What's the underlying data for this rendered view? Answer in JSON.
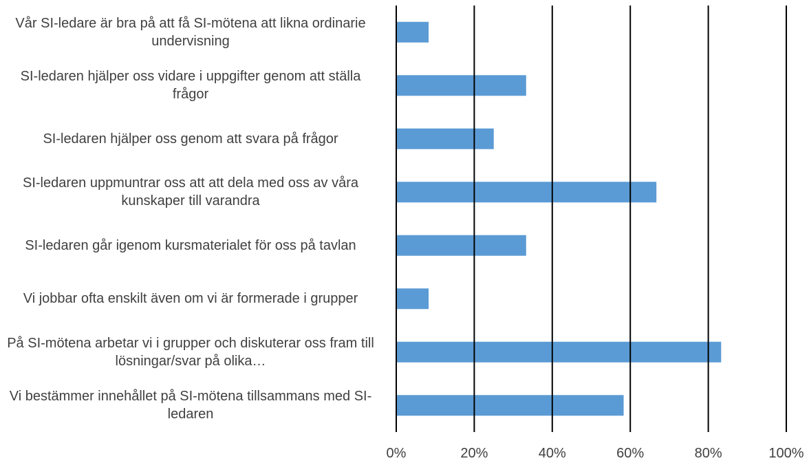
{
  "chart_data": {
    "type": "bar",
    "orientation": "horizontal",
    "categories": [
      "Vår SI-ledare är bra på att få SI-mötena att likna ordinarie undervisning",
      "SI-ledaren hjälper oss vidare i uppgifter genom att ställa frågor",
      "SI-ledaren hjälper oss genom att svara på frågor",
      "SI-ledaren uppmuntrar oss att att dela med oss av våra kunskaper till varandra",
      "SI-ledaren går igenom kursmaterialet för oss på tavlan",
      "Vi jobbar ofta enskilt även om vi är formerade i grupper",
      "På SI-mötena arbetar vi i grupper och diskuterar oss fram till lösningar/svar på olika…",
      "Vi bestämmer innehållet på SI-mötena tillsammans med SI-ledaren"
    ],
    "values": [
      8.3,
      33.3,
      25,
      66.7,
      33.3,
      8.3,
      83.3,
      58.3
    ],
    "color": "#5b9bd5",
    "xlim": [
      0,
      100
    ],
    "xticks": [
      {
        "value": 0,
        "label": "0%"
      },
      {
        "value": 20,
        "label": "20%"
      },
      {
        "value": 40,
        "label": "40%"
      },
      {
        "value": 60,
        "label": "60%"
      },
      {
        "value": 80,
        "label": "80%"
      },
      {
        "value": 100,
        "label": "100%"
      }
    ],
    "grid": true
  }
}
